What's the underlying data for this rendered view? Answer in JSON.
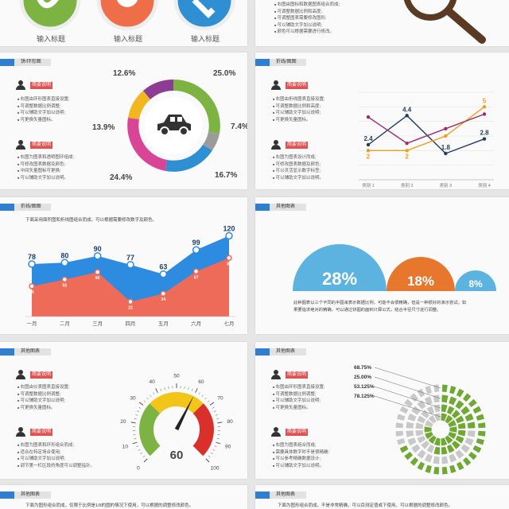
{
  "slide1": {
    "titles": [
      "输入标题",
      "输入标题",
      "输入标题"
    ],
    "right_bullets": [
      "右图由图标和数据图表组合而成;",
      "可调整数据比例和高度;",
      "可调整图表需要修改图形;",
      "可以辅助文字加以说明;",
      "颜色可以根据需要进行修改。"
    ]
  },
  "slide2": {
    "tag": "饼/环形图",
    "block1": {
      "label": "简要说明",
      "bullets": [
        "右图由环形图表直接设置;",
        "可调整数据比例调整;",
        "可以辅助文字加以说明;",
        "可更换矢量图标。"
      ]
    },
    "block2": {
      "label": "简要说明",
      "bullets": [
        "右图为图表和透明图环组成;",
        "可修改图表数据及颜色;",
        "中间矢量图标可更换;",
        "可以辅助文字加以说明。"
      ]
    },
    "percents": {
      "p1": "12.6%",
      "p2": "25.0%",
      "p3": "7.4%",
      "p4": "16.7%",
      "p5": "24.4%",
      "p6": "13.9%"
    },
    "colors": {
      "green": "#7db343",
      "gray": "#9b9b9b",
      "blue": "#2f8fd3",
      "pink": "#d94596",
      "yellow": "#f2b61f",
      "purple": "#8c3d93"
    },
    "center_icon": "car-icon"
  },
  "slide3": {
    "tag": "折线/图图",
    "block1": {
      "label": "简要说明",
      "bullets": [
        "右图由折线图表直接设置;",
        "可调整数据比例和高度;",
        "可以辅助文字加以说明;",
        "可更换矢量图标。"
      ]
    },
    "block2": {
      "label": "简要说明",
      "bullets": [
        "右图为图表设计而成;",
        "可修改图表数据及颜色;",
        "可以灵活显示数字标签;",
        "可以辅助文字加以说明。"
      ]
    },
    "chart_data": {
      "type": "line",
      "categories": [
        "类别 1",
        "类别 2",
        "类别 3",
        "类别 4"
      ],
      "series": [
        {
          "name": "",
          "values": [
            2.4,
            4.4,
            1.8,
            2.8
          ],
          "color": "#1f3a5f"
        },
        {
          "name": "",
          "values": [
            2,
            2,
            3,
            5
          ],
          "color": "#f39c1b"
        },
        {
          "name": "",
          "values": [
            4.3,
            2.5,
            3.5,
            4.5
          ],
          "color": "#9b2d6e"
        }
      ],
      "labels": {
        "s1": [
          "2.4",
          "4.4",
          "1.8",
          "2.8"
        ],
        "s2": [
          "2",
          "2",
          "",
          "5"
        ]
      },
      "ylim": [
        0,
        6
      ]
    }
  },
  "slide4": {
    "tag": "折线/图图",
    "desc": "下面采用面积图和折线图组合而成。可以根据需要修改数字及颜色。",
    "chart_data": {
      "type": "area",
      "categories": [
        "一月",
        "二月",
        "三月",
        "四月",
        "五月",
        "六月",
        "七月"
      ],
      "series": [
        {
          "name": "",
          "values": [
            78,
            80,
            90,
            77,
            63,
            99,
            120
          ],
          "color": "#2d8be0"
        },
        {
          "name": "",
          "values": [
            45,
            55,
            66,
            22,
            34,
            67,
            87
          ],
          "color": "#ee6b5a"
        }
      ],
      "ylim": [
        0,
        130
      ]
    }
  },
  "slide5": {
    "tag": "其他图表",
    "values": [
      "28%",
      "18%",
      "8%"
    ],
    "colors": [
      "#5cb3e0",
      "#e8772e",
      "#5cb3e0"
    ],
    "desc_lines": [
      "此种图表以三个不同的半圆来表示数据比例，可能不会很精确，但是一种很好的演示尝试。如",
      "果要追求绝对的精确，可以通过饼图的面积计算公式，结合半径尺寸进行调整。"
    ]
  },
  "slide6": {
    "tag": "其他图表",
    "block1": {
      "label": "简要说明",
      "bullets": [
        "右图由仪表图表直接设置;",
        "可调整数据比例调整;",
        "可以辅助文字加以说明;",
        "可更换矢量图标。"
      ]
    },
    "block2": {
      "label": "简要说明",
      "bullets": [
        "右图为图表和环形组合而成;",
        "适合在特定场合使用;",
        "可以辅助文字加以说明;",
        "调节第一栏区段的角度可以调整指针。"
      ]
    },
    "gauge": {
      "value": "60",
      "ticks": [
        "0",
        "10",
        "20",
        "30",
        "40",
        "50",
        "60",
        "70",
        "80",
        "90",
        "100"
      ]
    }
  },
  "slide7": {
    "tag": "其他图表",
    "block1": {
      "label": "简要说明",
      "bullets": [
        "右图由环形图表直接设置;",
        "可调整数据比例调整;",
        "可以辅助文字加以说明;",
        "可更换矢量图标。"
      ]
    },
    "block2": {
      "label": "简要说明",
      "bullets": [
        "右图为图表组合而成;",
        "需要具体数字时不是很精确;",
        "可以参考精确数据设计;",
        "可以辅助文字加以说明。"
      ]
    },
    "rings": [
      "68.75%",
      "25.00%",
      "53.125%",
      "78.125%"
    ]
  },
  "slide8": {
    "tag": "其他图表",
    "desc": "下面为图形组合而成，仅限于比例是1/8的圆的情况下使用，可以根据的调整修改颜色。"
  },
  "slide9": {
    "tag": "其他图表",
    "desc": "下面为图形组合而成，不是非常精确，可以目测定值或下使用，可以根据的调整修改颜色。"
  }
}
